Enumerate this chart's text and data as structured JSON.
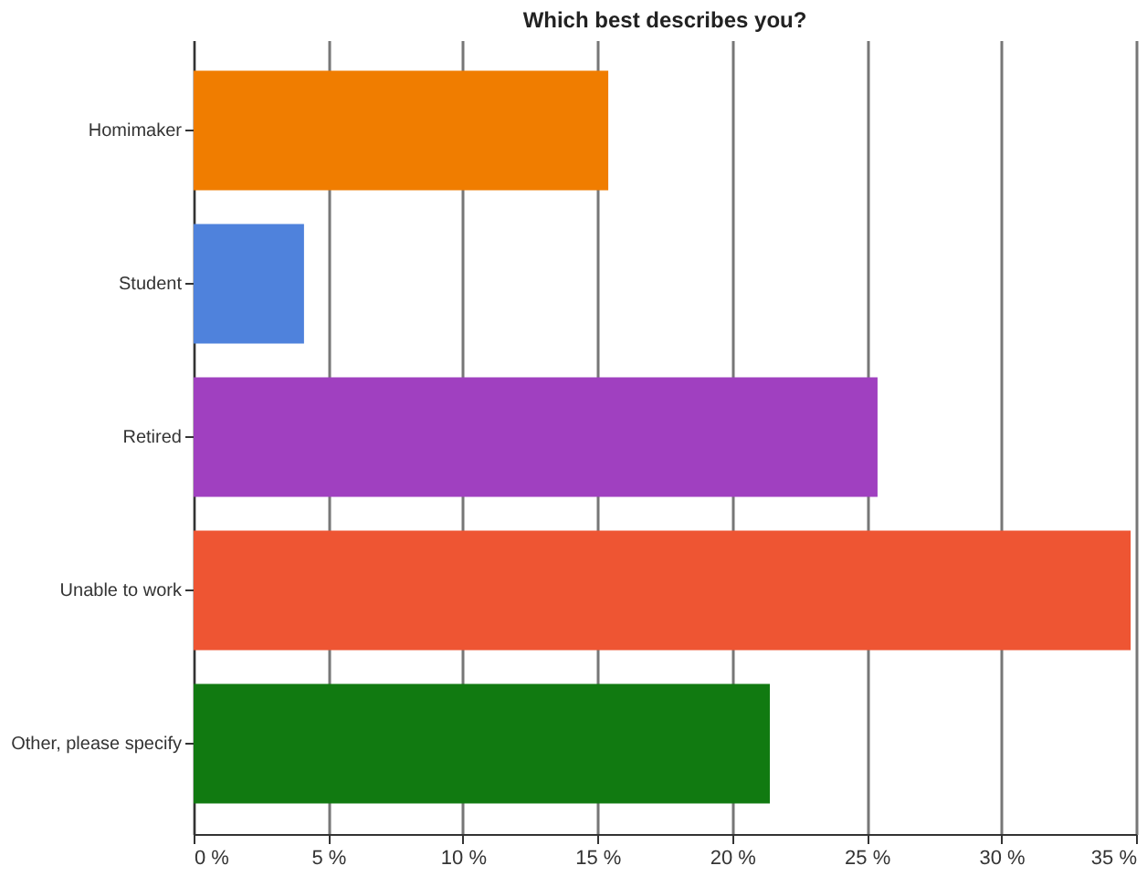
{
  "chart_data": {
    "type": "bar",
    "orientation": "horizontal",
    "title": "Which best describes you?",
    "categories": [
      "Homimaker",
      "Student",
      "Retired",
      "Unable to work",
      "Other, please specify"
    ],
    "values": [
      15.4,
      4.1,
      25.4,
      34.8,
      21.4
    ],
    "colors": [
      "#f07d00",
      "#4f82dc",
      "#a040c0",
      "#ee5533",
      "#117a11"
    ],
    "xlim": [
      0,
      35
    ],
    "xticks": [
      {
        "value": 0,
        "label": "0 %"
      },
      {
        "value": 5,
        "label": "5 %"
      },
      {
        "value": 10,
        "label": "10 %"
      },
      {
        "value": 15,
        "label": "15 %"
      },
      {
        "value": 20,
        "label": "20 %"
      },
      {
        "value": 25,
        "label": "25 %"
      },
      {
        "value": 30,
        "label": "30 %"
      },
      {
        "value": 35,
        "label": "35 %"
      }
    ],
    "grid": "x"
  }
}
